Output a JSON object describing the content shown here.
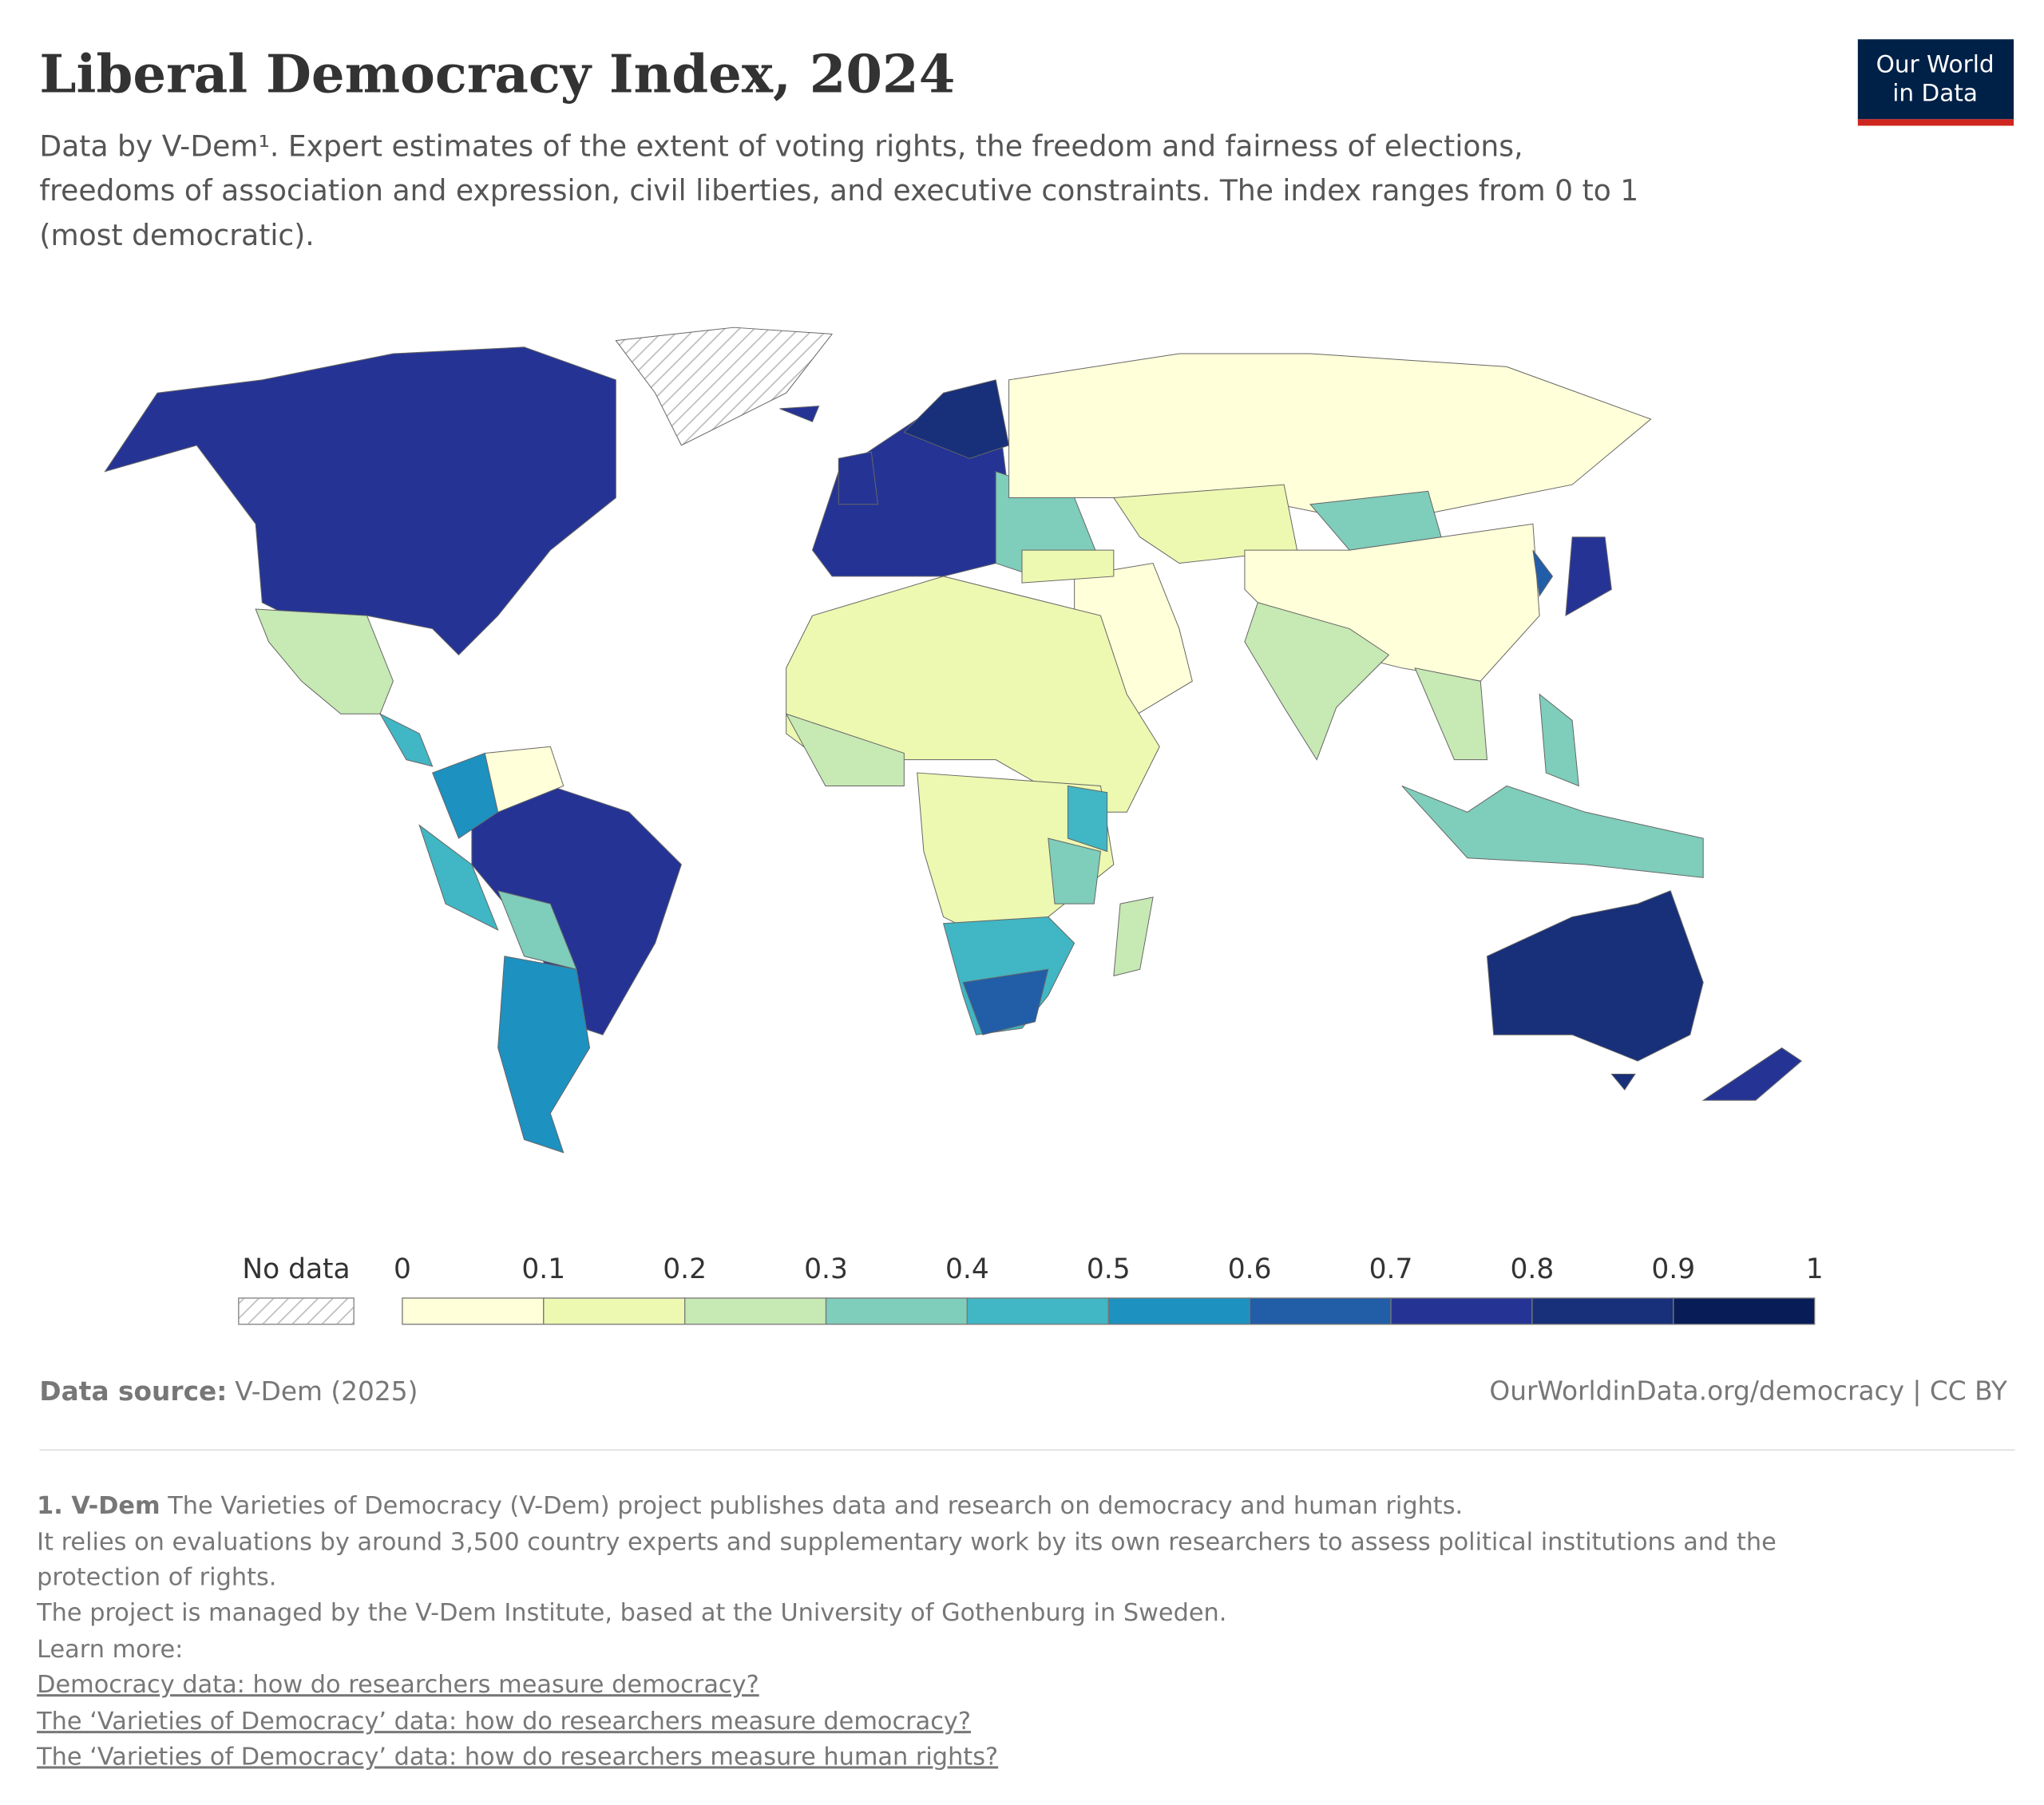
{
  "header": {
    "title": "Liberal Democracy Index, 2024",
    "subtitle_lines": [
      "Data by V-Dem¹. Expert estimates of the extent of voting rights, the freedom and fairness of elections,",
      "freedoms of association and expression, civil liberties, and executive constraints. The index ranges from 0 to 1",
      "(most democratic)."
    ],
    "logo": [
      "Our World",
      "in Data"
    ]
  },
  "legend": {
    "no_data": "No data",
    "ticks": [
      0,
      0.1,
      0.2,
      0.3,
      0.4,
      0.5,
      0.6,
      0.7,
      0.8,
      0.9,
      1
    ],
    "colors": [
      "#ffffd9",
      "#edf8b1",
      "#c7e9b4",
      "#7fcdbb",
      "#41b6c4",
      "#1d91c0",
      "#225ea8",
      "#253494",
      "#182f79",
      "#081d58"
    ]
  },
  "footer": {
    "source_label": "Data source:",
    "source": "V-Dem (2025)",
    "url": "OurWorldinData.org/democracy | CC BY"
  },
  "notes": {
    "heading": "1. V-Dem",
    "lines": [
      " The Varieties of Democracy (V-Dem) project publishes data and research on democracy and human rights.",
      "It relies on evaluations by around 3,500 country experts and supplementary work by its own researchers to assess political institutions and the",
      "protection of rights.",
      "The project is managed by the V-Dem Institute, based at the University of Gothenburg in Sweden.",
      "Learn more:"
    ],
    "links": [
      "Democracy data: how do researchers measure democracy?",
      "The ‘Varieties of Democracy’ data: how do researchers measure democracy?",
      "The ‘Varieties of Democracy’ data: how do researchers measure human rights?"
    ]
  }
}
